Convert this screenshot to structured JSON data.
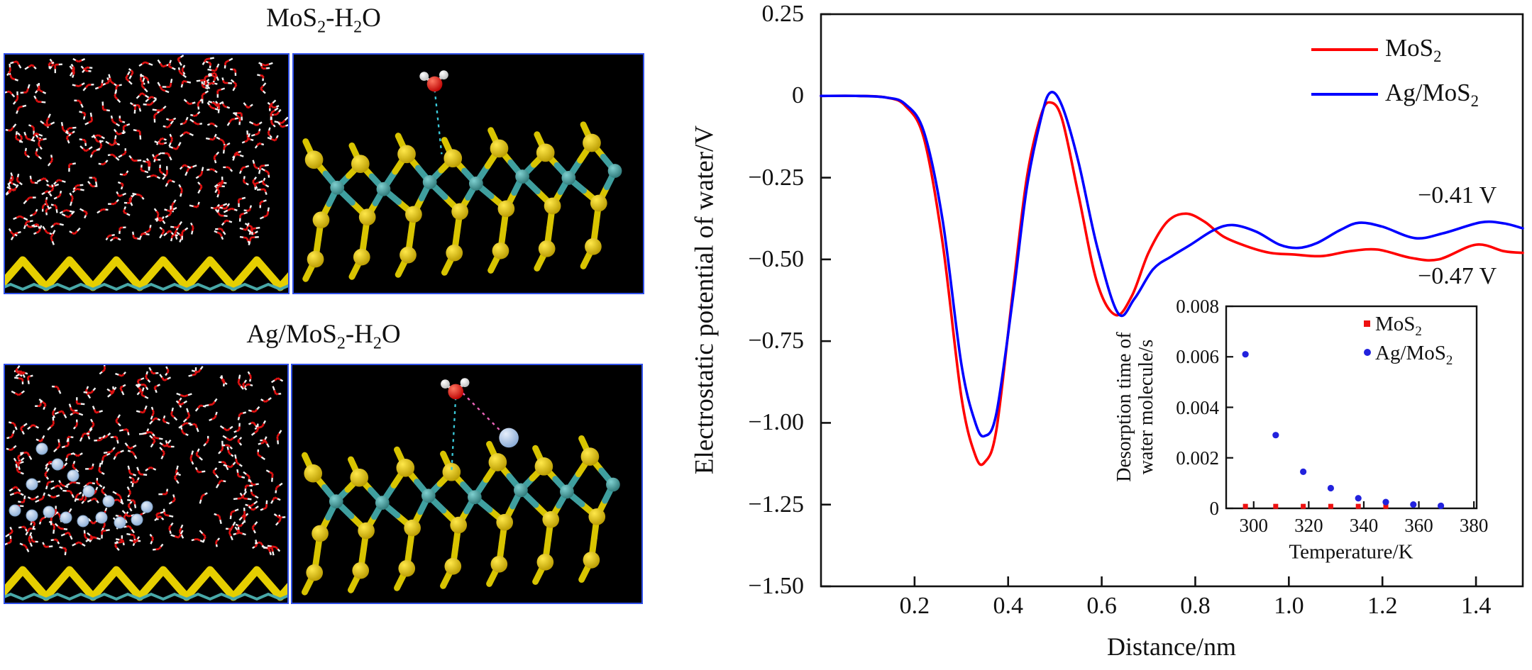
{
  "left_panels": {
    "top": {
      "title": "MoS₂-H₂O"
    },
    "bottom": {
      "title": "Ag/MoS₂-H₂O"
    }
  },
  "chart_data": [
    {
      "id": "main",
      "type": "line",
      "title": "",
      "xlabel": "Distance/nm",
      "ylabel": "Electrostatic potential of water/V",
      "xlim": [
        0,
        1.5
      ],
      "ylim": [
        -1.5,
        0.25
      ],
      "xtick_values": [
        0.2,
        0.4,
        0.6,
        0.8,
        1.0,
        1.2,
        1.4
      ],
      "xtick_labels": [
        "0.2",
        "0.4",
        "0.6",
        "0.8",
        "1.0",
        "1.2",
        "1.4"
      ],
      "ytick_values": [
        0.25,
        0,
        -0.25,
        -0.5,
        -0.75,
        -1.0,
        -1.25,
        -1.5
      ],
      "ytick_labels": [
        "0.25",
        "0",
        "−0.25",
        "−0.50",
        "−0.75",
        "−1.00",
        "−1.25",
        "−1.50"
      ],
      "grid": false,
      "legend_position": "top-right",
      "annotations": [
        {
          "text": "−0.41 V",
          "x": 1.36,
          "y": -0.305
        },
        {
          "text": "−0.47 V",
          "x": 1.36,
          "y": -0.552
        }
      ],
      "series": [
        {
          "name": "MoS₂",
          "color": "#ff0000",
          "x": [
            0.0,
            0.08,
            0.14,
            0.18,
            0.22,
            0.26,
            0.3,
            0.33,
            0.35,
            0.375,
            0.41,
            0.44,
            0.47,
            0.49,
            0.515,
            0.55,
            0.59,
            0.63,
            0.665,
            0.7,
            0.74,
            0.78,
            0.82,
            0.86,
            0.91,
            0.96,
            1.01,
            1.07,
            1.13,
            1.19,
            1.26,
            1.32,
            1.4,
            1.46,
            1.5
          ],
          "y": [
            0,
            0,
            -0.005,
            -0.03,
            -0.13,
            -0.45,
            -0.92,
            -1.1,
            -1.12,
            -1.02,
            -0.6,
            -0.25,
            -0.06,
            -0.02,
            -0.07,
            -0.3,
            -0.57,
            -0.67,
            -0.61,
            -0.48,
            -0.385,
            -0.36,
            -0.385,
            -0.43,
            -0.46,
            -0.48,
            -0.485,
            -0.49,
            -0.475,
            -0.47,
            -0.495,
            -0.5,
            -0.455,
            -0.475,
            -0.48
          ]
        },
        {
          "name": "Ag/MoS₂",
          "color": "#0000ff",
          "x": [
            0.0,
            0.08,
            0.14,
            0.18,
            0.22,
            0.26,
            0.3,
            0.33,
            0.35,
            0.375,
            0.41,
            0.44,
            0.47,
            0.49,
            0.515,
            0.55,
            0.59,
            0.635,
            0.67,
            0.71,
            0.75,
            0.79,
            0.84,
            0.88,
            0.93,
            0.98,
            1.02,
            1.06,
            1.11,
            1.15,
            1.2,
            1.27,
            1.33,
            1.41,
            1.46,
            1.5
          ],
          "y": [
            0,
            0,
            -0.005,
            -0.025,
            -0.11,
            -0.38,
            -0.82,
            -1.0,
            -1.04,
            -0.97,
            -0.62,
            -0.28,
            -0.07,
            0.01,
            -0.03,
            -0.2,
            -0.46,
            -0.665,
            -0.62,
            -0.53,
            -0.49,
            -0.455,
            -0.41,
            -0.395,
            -0.415,
            -0.455,
            -0.465,
            -0.45,
            -0.41,
            -0.388,
            -0.4,
            -0.435,
            -0.42,
            -0.387,
            -0.39,
            -0.405
          ]
        }
      ]
    },
    {
      "id": "inset",
      "type": "scatter",
      "xlabel": "Temperature/K",
      "ylabel": "Desorption time of water molecule/s",
      "ylabel_lines": [
        "Desorption time of",
        "water molecule/s"
      ],
      "xlim": [
        290,
        381
      ],
      "ylim": [
        0,
        0.008
      ],
      "xtick_values": [
        300,
        320,
        340,
        360,
        380
      ],
      "xtick_labels": [
        "300",
        "320",
        "340",
        "360",
        "380"
      ],
      "ytick_values": [
        0,
        0.002,
        0.004,
        0.006,
        0.008
      ],
      "ytick_labels": [
        "0",
        "0.002",
        "0.004",
        "0.006",
        "0.008"
      ],
      "grid": false,
      "legend_position": "top-right",
      "series": [
        {
          "name": "MoS₂",
          "marker": "square",
          "color": "#ee1111",
          "x": [
            297,
            308,
            318,
            328,
            338,
            348
          ],
          "y": [
            8e-05,
            8e-05,
            8e-05,
            8e-05,
            8e-05,
            8e-05
          ]
        },
        {
          "name": "Ag/MoS₂",
          "marker": "circle",
          "color": "#2222dd",
          "x": [
            297,
            308,
            318,
            328,
            338,
            348,
            358,
            368
          ],
          "y": [
            0.0061,
            0.0029,
            0.00145,
            0.0008,
            0.0004,
            0.00025,
            0.00015,
            0.0001
          ]
        }
      ]
    }
  ],
  "colors": {
    "mos2_curve": "#ff0000",
    "agmos2_curve": "#0000ff",
    "panel_border": "#3050e8",
    "axis": "#111111",
    "sulfur_yellow": "#e6cf00",
    "molybdenum_teal": "#48a8a8",
    "silver_blue": "#b9cfe8",
    "oxygen_red": "#dd1111",
    "hydrogen_white": "#f2f2f2",
    "hbond_cyan": "#3ac8d8",
    "agbond_pink": "#ee66bb"
  }
}
